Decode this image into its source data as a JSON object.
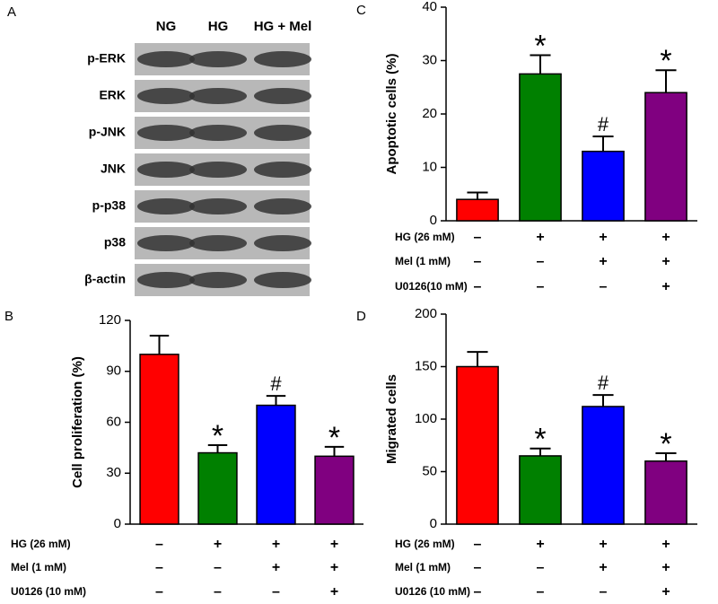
{
  "blot": {
    "panel": "A",
    "lanes": [
      "NG",
      "HG",
      "HG + Mel"
    ],
    "rows": [
      "p-ERK",
      "ERK",
      "p-JNK",
      "JNK",
      "p-p38",
      "p38",
      "β-actin"
    ]
  },
  "chart_data": [
    {
      "type": "bar",
      "panel": "C",
      "y_label": "Apoptotic cells (%)",
      "categories": [
        null,
        null,
        null,
        null
      ],
      "values": [
        4,
        27.5,
        13,
        24
      ],
      "errors": [
        1.3,
        3.5,
        2.8,
        4.2
      ],
      "annotations": [
        null,
        "*",
        "#",
        "*"
      ],
      "colors": [
        "#ff0000",
        "#008000",
        "#0000ff",
        "#800080"
      ],
      "ylim": [
        0,
        40
      ],
      "yticks": [
        0,
        10,
        20,
        30,
        40
      ],
      "conditions": [
        {
          "label": "HG (26 mM)",
          "marks": [
            "–",
            "+",
            "+",
            "+"
          ]
        },
        {
          "label": "Mel (1 mM)",
          "marks": [
            "–",
            "–",
            "+",
            "+"
          ]
        },
        {
          "label": "U0126(10 mM)",
          "marks": [
            "–",
            "–",
            "–",
            "+"
          ]
        }
      ]
    },
    {
      "type": "bar",
      "panel": "B",
      "y_label": "Cell proliferation (%)",
      "categories": [
        null,
        null,
        null,
        null
      ],
      "values": [
        100,
        42,
        70,
        40
      ],
      "errors": [
        11,
        4.5,
        5.5,
        5.5
      ],
      "annotations": [
        null,
        "*",
        "#",
        "*"
      ],
      "colors": [
        "#ff0000",
        "#008000",
        "#0000ff",
        "#800080"
      ],
      "ylim": [
        0,
        120
      ],
      "yticks": [
        0,
        30,
        60,
        90,
        120
      ],
      "conditions": [
        {
          "label": "HG (26 mM)",
          "marks": [
            "–",
            "+",
            "+",
            "+"
          ]
        },
        {
          "label": "Mel (1 mM)",
          "marks": [
            "–",
            "–",
            "+",
            "+"
          ]
        },
        {
          "label": "U0126 (10 mM)",
          "marks": [
            "–",
            "–",
            "–",
            "+"
          ]
        }
      ]
    },
    {
      "type": "bar",
      "panel": "D",
      "y_label": "Migrated cells",
      "categories": [
        null,
        null,
        null,
        null
      ],
      "values": [
        150,
        65,
        112,
        60
      ],
      "errors": [
        14,
        7,
        11,
        7.5
      ],
      "annotations": [
        null,
        "*",
        "#",
        "*"
      ],
      "colors": [
        "#ff0000",
        "#008000",
        "#0000ff",
        "#800080"
      ],
      "ylim": [
        0,
        200
      ],
      "yticks": [
        0,
        50,
        100,
        150,
        200
      ],
      "conditions": [
        {
          "label": "HG (26 mM)",
          "marks": [
            "–",
            "+",
            "+",
            "+"
          ]
        },
        {
          "label": "Mel (1 mM)",
          "marks": [
            "–",
            "–",
            "+",
            "+"
          ]
        },
        {
          "label": "U0126 (10 mM)",
          "marks": [
            "–",
            "–",
            "–",
            "+"
          ]
        }
      ]
    }
  ]
}
